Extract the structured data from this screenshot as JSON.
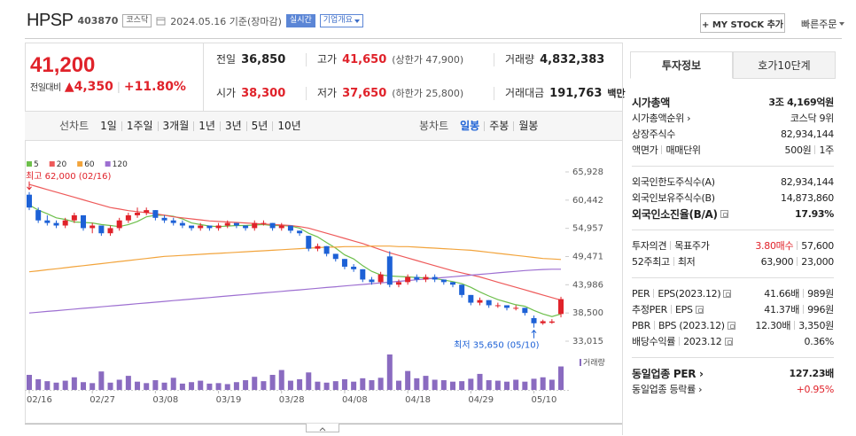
{
  "header": {
    "name": "HPSP",
    "code": "403870",
    "market": "코스닥",
    "date_text": "2024.05.16 기준(장마감)",
    "realtime": "실시간",
    "company_info": "기업개요",
    "mystock": "+ MY STOCK 추가",
    "quick_order": "빠른주문"
  },
  "quote": {
    "price": "41,200",
    "change_label": "전일대비",
    "change": "▲4,350",
    "change_pct": "+11.80%",
    "color": "#e0222a",
    "fields": [
      [
        {
          "label": "전일",
          "value": "36,850"
        },
        {
          "label": "고가",
          "value": "41,650",
          "note": "(상한가 47,900)",
          "color": "#e0222a"
        },
        {
          "label": "거래량",
          "value": "4,832,383"
        }
      ],
      [
        {
          "label": "시가",
          "value": "38,300",
          "color": "#e0222a"
        },
        {
          "label": "저가",
          "value": "37,650",
          "note": "(하한가 25,800)",
          "color": "#e0222a"
        },
        {
          "label": "거래대금",
          "value": "191,763",
          "unit": "백만"
        }
      ]
    ]
  },
  "chart_tabs": {
    "line_label": "선차트",
    "line_periods": [
      "1일",
      "1주일",
      "3개월",
      "1년",
      "3년",
      "5년",
      "10년"
    ],
    "candle_label": "봉차트",
    "candle_periods": [
      "일봉",
      "주봉",
      "월봉"
    ],
    "active_candle": 0
  },
  "chart_data": {
    "type": "candlestick",
    "categories": [
      "02/16",
      null,
      null,
      null,
      null,
      null,
      null,
      "02/27",
      null,
      null,
      null,
      null,
      null,
      null,
      "03/08",
      null,
      null,
      null,
      null,
      null,
      null,
      "03/19",
      null,
      null,
      null,
      null,
      null,
      null,
      "03/28",
      null,
      null,
      null,
      null,
      null,
      null,
      "04/08",
      null,
      null,
      null,
      null,
      null,
      null,
      "04/18",
      null,
      null,
      null,
      null,
      null,
      null,
      "04/29",
      null,
      null,
      null,
      null,
      null,
      null,
      "05/10",
      null,
      null,
      null
    ],
    "candles": [
      [
        61500,
        62000,
        58500,
        59000
      ],
      [
        58500,
        59000,
        56000,
        56500
      ],
      [
        56500,
        57500,
        55500,
        56000
      ],
      [
        56000,
        56500,
        55000,
        55500
      ],
      [
        55500,
        57000,
        55000,
        56500
      ],
      [
        56500,
        58000,
        56000,
        57500
      ],
      [
        57500,
        57500,
        54500,
        55000
      ],
      [
        55000,
        56000,
        54000,
        55500
      ],
      [
        55500,
        55500,
        53500,
        54000
      ],
      [
        54000,
        55500,
        53500,
        55000
      ],
      [
        55000,
        57000,
        54500,
        56500
      ],
      [
        56500,
        58000,
        56000,
        57500
      ],
      [
        57500,
        59000,
        57000,
        58000
      ],
      [
        58000,
        59000,
        57500,
        58500
      ],
      [
        58500,
        58500,
        56500,
        57000
      ],
      [
        57000,
        57500,
        56000,
        56500
      ],
      [
        56500,
        57000,
        55500,
        56000
      ],
      [
        56000,
        56500,
        55000,
        55500
      ],
      [
        55500,
        55500,
        54500,
        55000
      ],
      [
        55000,
        56000,
        54500,
        55500
      ],
      [
        55500,
        55500,
        54500,
        55000
      ],
      [
        55000,
        56000,
        54500,
        55500
      ],
      [
        55500,
        56500,
        55000,
        56000
      ],
      [
        56000,
        56000,
        55000,
        55500
      ],
      [
        55500,
        55500,
        54500,
        55000
      ],
      [
        55000,
        56500,
        54500,
        56000
      ],
      [
        56000,
        56500,
        55500,
        56000
      ],
      [
        56000,
        56000,
        54500,
        55000
      ],
      [
        55000,
        56000,
        54500,
        55500
      ],
      [
        55500,
        55500,
        54000,
        54500
      ],
      [
        54500,
        54500,
        53500,
        54000
      ],
      [
        53500,
        53500,
        50500,
        51000
      ],
      [
        51000,
        52000,
        50500,
        51500
      ],
      [
        51500,
        51500,
        49500,
        50000
      ],
      [
        50000,
        50000,
        48500,
        49000
      ],
      [
        49000,
        49000,
        47000,
        47500
      ],
      [
        47500,
        48000,
        46500,
        47000
      ],
      [
        47000,
        47000,
        44500,
        45000
      ],
      [
        45000,
        45500,
        44000,
        44500
      ],
      [
        44500,
        46500,
        44000,
        46000
      ],
      [
        49500,
        50500,
        43500,
        44000
      ],
      [
        44000,
        45000,
        43500,
        44500
      ],
      [
        44500,
        46000,
        44000,
        45500
      ],
      [
        45500,
        46000,
        44500,
        45000
      ],
      [
        45000,
        46000,
        44500,
        45500
      ],
      [
        45500,
        46000,
        44500,
        45000
      ],
      [
        45000,
        45000,
        44000,
        44500
      ],
      [
        44500,
        44500,
        43500,
        44000
      ],
      [
        44000,
        44000,
        41500,
        42000
      ],
      [
        42000,
        42000,
        40000,
        40500
      ],
      [
        40500,
        41500,
        40000,
        41000
      ],
      [
        41000,
        41000,
        39500,
        40000
      ],
      [
        40000,
        40500,
        39500,
        40000
      ],
      [
        40000,
        40000,
        39000,
        39500
      ],
      [
        39500,
        40000,
        39000,
        39500
      ],
      [
        39500,
        39500,
        38000,
        38500
      ],
      [
        37500,
        38000,
        35650,
        36500
      ],
      [
        36500,
        37200,
        36200,
        36900
      ],
      [
        36600,
        37300,
        36400,
        36850
      ],
      [
        38300,
        41650,
        37650,
        41200
      ]
    ],
    "up_color": "#e0222a",
    "down_color": "#1d61d6",
    "series": [
      {
        "name": "5",
        "color": "#6dbf4b",
        "values": [
          59500,
          58500,
          57800,
          57000,
          56700,
          56200,
          56100,
          56000,
          55700,
          55500,
          55300,
          55700,
          56300,
          57200,
          57500,
          57500,
          57300,
          56800,
          56000,
          55700,
          55400,
          55300,
          55400,
          55500,
          55500,
          55600,
          55700,
          55500,
          55500,
          55400,
          55000,
          54000,
          53300,
          52200,
          51100,
          49800,
          49000,
          47700,
          46600,
          45900,
          45700,
          45600,
          45500,
          45400,
          45300,
          45200,
          44900,
          44600,
          44200,
          43500,
          42600,
          41800,
          41100,
          40600,
          40100,
          39800,
          39000,
          38300,
          37800,
          38300
        ]
      },
      {
        "name": "20",
        "color": "#ee5a5a",
        "values": [
          63500,
          63000,
          62500,
          62000,
          61500,
          61000,
          60500,
          60000,
          59500,
          59000,
          58700,
          58400,
          58200,
          58000,
          57800,
          57500,
          57200,
          57000,
          56800,
          56600,
          56400,
          56300,
          56200,
          56100,
          56000,
          55900,
          55800,
          55700,
          55600,
          55500,
          55300,
          55000,
          54500,
          54000,
          53500,
          53000,
          52500,
          52000,
          51400,
          50800,
          50200,
          49700,
          49200,
          48700,
          48200,
          47700,
          47200,
          46700,
          46300,
          45900,
          45500,
          45000,
          44500,
          44000,
          43500,
          43000,
          42500,
          42000,
          41500,
          41000
        ]
      },
      {
        "name": "60",
        "color": "#f2a43c",
        "values": [
          46500,
          46700,
          46900,
          47100,
          47300,
          47500,
          47700,
          47900,
          48100,
          48300,
          48500,
          48700,
          48900,
          49100,
          49300,
          49500,
          49600,
          49700,
          49800,
          49900,
          50000,
          50100,
          50200,
          50300,
          50400,
          50500,
          50600,
          50700,
          50800,
          50900,
          51000,
          51100,
          51200,
          51300,
          51300,
          51400,
          51400,
          51400,
          51500,
          51500,
          51500,
          51400,
          51400,
          51300,
          51200,
          51100,
          51000,
          50900,
          50800,
          50700,
          50500,
          50300,
          50100,
          49900,
          49700,
          49500,
          49300,
          49100,
          49000,
          48900
        ]
      },
      {
        "name": "120",
        "color": "#9d6fd1",
        "values": [
          38500,
          38650,
          38800,
          38950,
          39100,
          39250,
          39400,
          39550,
          39700,
          39850,
          40000,
          40150,
          40300,
          40450,
          40600,
          40750,
          40900,
          41050,
          41200,
          41350,
          41500,
          41650,
          41800,
          41950,
          42100,
          42250,
          42400,
          42550,
          42700,
          42850,
          43000,
          43150,
          43300,
          43450,
          43600,
          43750,
          43900,
          44050,
          44200,
          44350,
          44500,
          44650,
          44800,
          44950,
          45100,
          45250,
          45400,
          45550,
          45700,
          45850,
          46000,
          46150,
          46300,
          46450,
          46600,
          46750,
          46850,
          46950,
          47000,
          47000
        ]
      }
    ],
    "volume": {
      "label": "거래량",
      "color": "#8a6bc0",
      "values": [
        3100000,
        2200000,
        1800000,
        1500000,
        1900000,
        2600000,
        1600000,
        1400000,
        3800000,
        1500000,
        2100000,
        2900000,
        1700000,
        1400000,
        2000000,
        1500000,
        2500000,
        1300000,
        1600000,
        1900000,
        1300000,
        1400000,
        1200000,
        1600000,
        2000000,
        2700000,
        1800000,
        3100000,
        4100000,
        1900000,
        2200000,
        3600000,
        1700000,
        1500000,
        1800000,
        2200000,
        1700000,
        2400000,
        2000000,
        2500000,
        7300000,
        1900000,
        3900000,
        2400000,
        2900000,
        2100000,
        2000000,
        1700000,
        1800000,
        2300000,
        3300000,
        2000000,
        1900000,
        1700000,
        2100000,
        1700000,
        2300000,
        2600000,
        2100000,
        4832383
      ]
    },
    "ylim": [
      33015,
      65928
    ],
    "yticks": [
      {
        "value": 65928,
        "label": "65,928"
      },
      {
        "value": 60442,
        "label": "60,442"
      },
      {
        "value": 54957,
        "label": "54,957"
      },
      {
        "value": 49471,
        "label": "49,471"
      },
      {
        "value": 43986,
        "label": "43,986"
      },
      {
        "value": 38500,
        "label": "38,500"
      },
      {
        "value": 33015,
        "label": "33,015"
      }
    ],
    "high_label": "최고 62,000 (02/16)",
    "low_label": "최저 35,650 (05/10)",
    "grid": false
  },
  "invest_info": {
    "tabs": [
      "투자정보",
      "호가10단계"
    ],
    "active_tab": 0,
    "groups": [
      [
        {
          "label": [
            "시가총액"
          ],
          "value": [
            "3조 4,169억원"
          ],
          "bold": true
        },
        {
          "label": [
            "시가총액순위 ›"
          ],
          "value": [
            "코스닥 9위"
          ]
        },
        {
          "label": [
            "상장주식수"
          ],
          "value": [
            "82,934,144"
          ]
        },
        {
          "label": [
            "액면가",
            "매매단위"
          ],
          "value": [
            "500원",
            "1주"
          ]
        }
      ],
      [
        {
          "label": [
            "외국인한도주식수(A)"
          ],
          "value": [
            "82,934,144"
          ]
        },
        {
          "label": [
            "외국인보유주식수(B)"
          ],
          "value": [
            "14,873,860"
          ]
        },
        {
          "label": [
            "외국인소진율(B/A)"
          ],
          "value": [
            "17.93%"
          ],
          "bold": true,
          "help": true
        }
      ],
      [
        {
          "label": [
            "투자의견",
            "목표주가"
          ],
          "value": [
            "3.80매수",
            "57,600"
          ],
          "color": "#e0222a"
        },
        {
          "label": [
            "52주최고",
            "최저"
          ],
          "value": [
            "63,900",
            "23,000"
          ]
        }
      ],
      [
        {
          "label": [
            "PER",
            "EPS(2023.12)"
          ],
          "value": [
            "41.66배",
            "989원"
          ],
          "help": true
        },
        {
          "label": [
            "추정PER",
            "EPS"
          ],
          "value": [
            "41.37배",
            "996원"
          ],
          "help": true
        },
        {
          "label": [
            "PBR",
            "BPS (2023.12)"
          ],
          "value": [
            "12.30배",
            "3,350원"
          ],
          "help": true
        },
        {
          "label": [
            "배당수익률",
            "2023.12"
          ],
          "value": [
            "0.36%"
          ],
          "help": true
        }
      ],
      [
        {
          "label": [
            "동일업종 PER ›"
          ],
          "value": [
            "127.23배"
          ],
          "bold": true
        },
        {
          "label": [
            "동일업종 등락률 ›"
          ],
          "value": [
            "+0.95%"
          ],
          "color": "#e0222a"
        }
      ]
    ]
  }
}
